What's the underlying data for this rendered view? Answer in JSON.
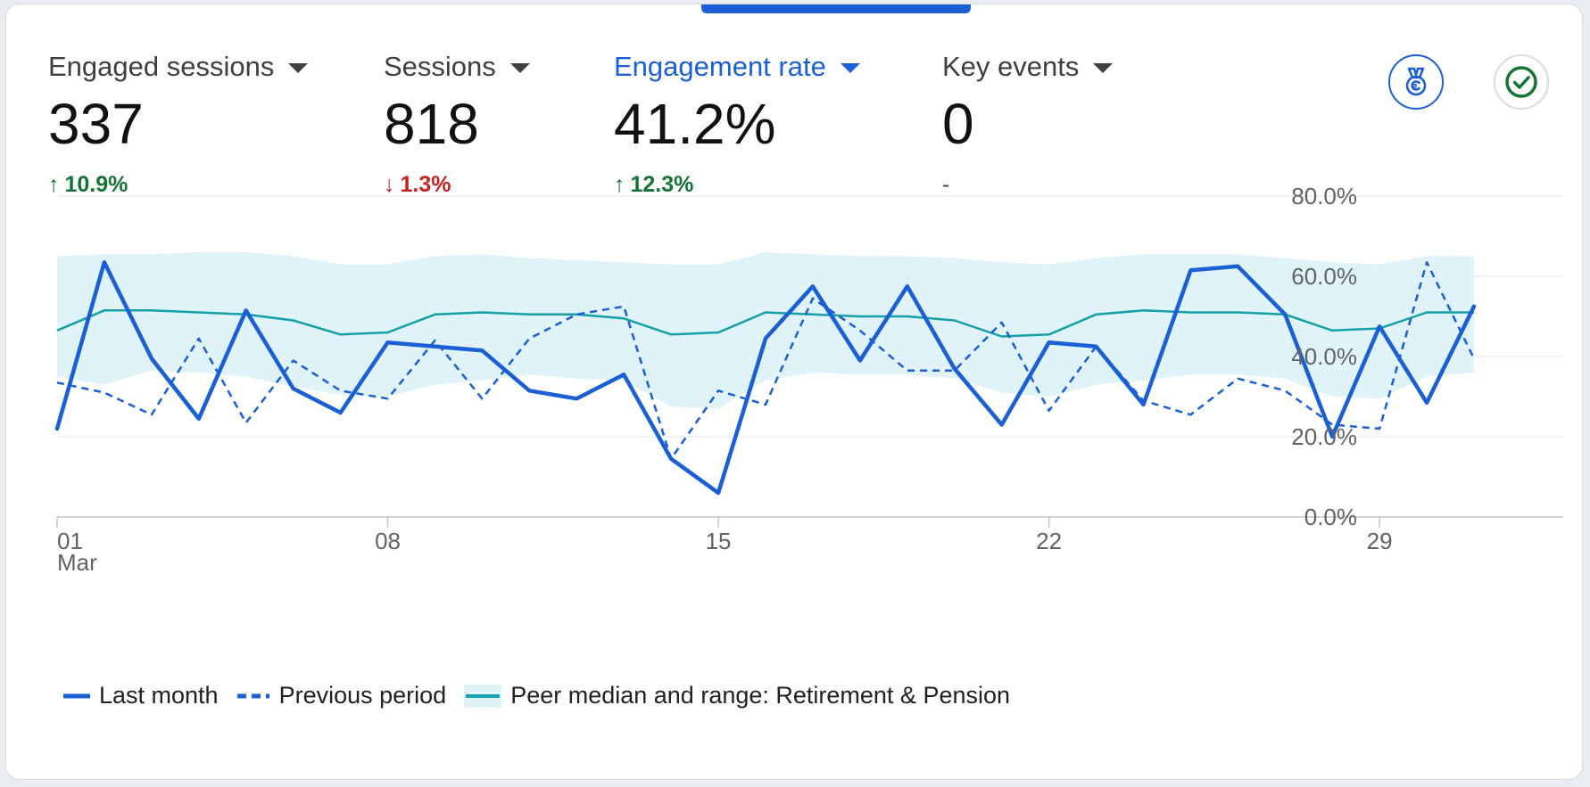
{
  "metrics": [
    {
      "label": "Engaged sessions",
      "value": "337",
      "change": "10.9%",
      "direction": "up",
      "arrow": "↑"
    },
    {
      "label": "Sessions",
      "value": "818",
      "change": "1.3%",
      "direction": "down",
      "arrow": "↓"
    },
    {
      "label": "Engagement rate",
      "value": "41.2%",
      "change": "12.3%",
      "direction": "up",
      "arrow": "↑",
      "active": true
    },
    {
      "label": "Key events",
      "value": "0",
      "change": "-",
      "direction": "none",
      "arrow": ""
    }
  ],
  "icons": {
    "badge": "medal-icon",
    "check": "check-circle-icon"
  },
  "colors": {
    "accent": "#1a5fd6",
    "up": "#137333",
    "down": "#c5221f",
    "median": "#14a0a6",
    "band": "#dff3f9"
  },
  "legend": {
    "last_month": "Last month",
    "previous_period": "Previous period",
    "peer": "Peer median and range: Retirement & Pension"
  },
  "chart_data": {
    "type": "line",
    "x_tick_labels": [
      {
        "day": 1,
        "label": "01",
        "sublabel": "Mar"
      },
      {
        "day": 8,
        "label": "08",
        "sublabel": ""
      },
      {
        "day": 15,
        "label": "15",
        "sublabel": ""
      },
      {
        "day": 22,
        "label": "22",
        "sublabel": ""
      },
      {
        "day": 29,
        "label": "29",
        "sublabel": ""
      }
    ],
    "y_tick_labels": [
      "0.0%",
      "20.0%",
      "40.0%",
      "60.0%",
      "80.0%"
    ],
    "ylim": [
      0,
      80
    ],
    "x": [
      1,
      2,
      3,
      4,
      5,
      6,
      7,
      8,
      9,
      10,
      11,
      12,
      13,
      14,
      15,
      16,
      17,
      18,
      19,
      20,
      21,
      22,
      23,
      24,
      25,
      26,
      27,
      28,
      29,
      30,
      31
    ],
    "series": [
      {
        "name": "Last month",
        "style": "solid",
        "values": [
          22,
          63.5,
          39.5,
          24.5,
          51.5,
          32,
          26,
          43.5,
          42.5,
          41.5,
          31.5,
          29.5,
          35.5,
          14.5,
          6,
          44.5,
          57.5,
          39,
          57.5,
          37,
          23,
          43.5,
          42.5,
          28,
          61.5,
          62.5,
          50.5,
          20,
          47.5,
          28.5,
          52.5
        ]
      },
      {
        "name": "Previous period",
        "style": "dashed",
        "values": [
          33.5,
          31,
          25.5,
          44.5,
          23.5,
          39,
          31.5,
          29.5,
          44,
          29.5,
          44.5,
          50.5,
          52.5,
          14.5,
          31.5,
          28,
          54.5,
          46.5,
          36.5,
          36.5,
          48.5,
          26.5,
          42.5,
          29,
          25.5,
          34.5,
          31.5,
          23,
          22,
          63.5,
          39.5
        ]
      },
      {
        "name": "Peer median",
        "style": "median",
        "values": [
          46.5,
          51.5,
          51.5,
          51,
          50.5,
          49,
          45.5,
          46,
          50.5,
          51,
          50.5,
          50.5,
          49.5,
          45.5,
          46,
          51,
          50.5,
          50,
          50,
          49,
          45,
          45.5,
          50.5,
          51.5,
          51,
          51,
          50.5,
          46.5,
          47,
          51,
          51
        ]
      }
    ],
    "peer_range": {
      "upper": [
        65,
        65.5,
        65.5,
        66,
        66,
        65,
        63,
        63,
        65,
        65.5,
        64.5,
        64,
        63.5,
        63,
        63,
        66,
        65.5,
        65,
        65,
        64.5,
        63.5,
        63,
        64.5,
        65.5,
        65.5,
        65.5,
        64.5,
        63.5,
        63,
        65,
        65
      ],
      "lower": [
        35,
        33,
        36.5,
        36,
        35,
        32.5,
        30.5,
        30,
        33,
        34,
        35.5,
        34.5,
        34,
        27.5,
        27,
        34,
        36,
        35.5,
        35.5,
        34.5,
        31,
        30,
        33,
        34,
        35.5,
        35.5,
        34.5,
        30,
        29.5,
        35,
        36
      ]
    },
    "grid": true,
    "legend_position": "bottom-left"
  }
}
